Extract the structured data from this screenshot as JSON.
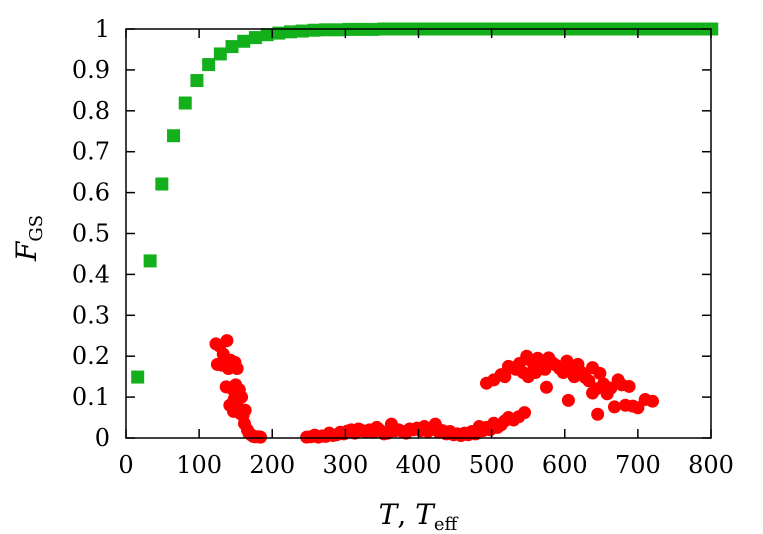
{
  "chart_data": {
    "type": "scatter",
    "title": "",
    "xlabel": "T, T_eff",
    "ylabel": "F_GS",
    "xlim": [
      0,
      800
    ],
    "ylim": [
      0,
      1
    ],
    "grid": false,
    "legend": "none",
    "x_ticks": [
      "0",
      "100",
      "200",
      "300",
      "400",
      "500",
      "600",
      "700",
      "800"
    ],
    "y_ticks": [
      "0",
      "0.1",
      "0.2",
      "0.3",
      "0.4",
      "0.5",
      "0.6",
      "0.7",
      "0.8",
      "0.9",
      "1"
    ],
    "axis_label_text": {
      "x_main": "T",
      "x_sep": ", ",
      "x_main2": "T",
      "x_sub2": "eff",
      "y_main": "F",
      "y_sub": "GS"
    },
    "series": [
      {
        "marker": "square",
        "color": "#13b01b",
        "points": [
          [
            16,
            0.149
          ],
          [
            33,
            0.433
          ],
          [
            49,
            0.621
          ],
          [
            65,
            0.739
          ],
          [
            81,
            0.819
          ],
          [
            97,
            0.874
          ],
          [
            113,
            0.913
          ],
          [
            129,
            0.939
          ],
          [
            145,
            0.957
          ],
          [
            161,
            0.97
          ],
          [
            177,
            0.979
          ],
          [
            193,
            0.986
          ],
          [
            209,
            0.99
          ],
          [
            225,
            0.993
          ],
          [
            241,
            0.995
          ],
          [
            257,
            0.997
          ],
          [
            273,
            0.998
          ],
          [
            289,
            0.998
          ],
          [
            305,
            0.999
          ],
          [
            321,
            0.999
          ],
          [
            337,
            0.999
          ],
          [
            353,
            1.0
          ],
          [
            369,
            1.0
          ],
          [
            385,
            1.0
          ],
          [
            401,
            1.0
          ],
          [
            417,
            1.0
          ],
          [
            433,
            1.0
          ],
          [
            449,
            1.0
          ],
          [
            465,
            1.0
          ],
          [
            481,
            1.0
          ],
          [
            497,
            1.0
          ],
          [
            513,
            1.0
          ],
          [
            529,
            1.0
          ],
          [
            545,
            1.0
          ],
          [
            561,
            1.0
          ],
          [
            577,
            1.0
          ],
          [
            593,
            1.0
          ],
          [
            609,
            1.0
          ],
          [
            625,
            1.0
          ],
          [
            641,
            1.0
          ],
          [
            657,
            1.0
          ],
          [
            673,
            1.0
          ],
          [
            689,
            1.0
          ],
          [
            705,
            1.0
          ],
          [
            721,
            1.0
          ],
          [
            737,
            1.0
          ],
          [
            753,
            1.0
          ],
          [
            769,
            1.0
          ],
          [
            785,
            1.0
          ],
          [
            801,
            1.0
          ]
        ]
      },
      {
        "marker": "circle",
        "color": "#ff0000",
        "points": [
          [
            123,
            0.23
          ],
          [
            128,
            0.225
          ],
          [
            133,
            0.205
          ],
          [
            138,
            0.238
          ],
          [
            125,
            0.18
          ],
          [
            131,
            0.178
          ],
          [
            140,
            0.17
          ],
          [
            143,
            0.19
          ],
          [
            149,
            0.185
          ],
          [
            152,
            0.17
          ],
          [
            137,
            0.125
          ],
          [
            145,
            0.12
          ],
          [
            150,
            0.13
          ],
          [
            155,
            0.118
          ],
          [
            142,
            0.08
          ],
          [
            148,
            0.095
          ],
          [
            153,
            0.075
          ],
          [
            158,
            0.1
          ],
          [
            147,
            0.065
          ],
          [
            156,
            0.06
          ],
          [
            160,
            0.055
          ],
          [
            163,
            0.068
          ],
          [
            162,
            0.035
          ],
          [
            166,
            0.02
          ],
          [
            168,
            0.012
          ],
          [
            171,
            0.008
          ],
          [
            174,
            0.004
          ],
          [
            177,
            0.003
          ],
          [
            181,
            0.003
          ],
          [
            184,
            0.002
          ],
          [
            247,
            0.002
          ],
          [
            253,
            0.003
          ],
          [
            258,
            0.007
          ],
          [
            263,
            0.002
          ],
          [
            268,
            0.005
          ],
          [
            273,
            0.004
          ],
          [
            278,
            0.012
          ],
          [
            283,
            0.006
          ],
          [
            288,
            0.008
          ],
          [
            293,
            0.014
          ],
          [
            298,
            0.01
          ],
          [
            303,
            0.017
          ],
          [
            308,
            0.02
          ],
          [
            313,
            0.012
          ],
          [
            318,
            0.022
          ],
          [
            323,
            0.018
          ],
          [
            328,
            0.016
          ],
          [
            333,
            0.02
          ],
          [
            338,
            0.014
          ],
          [
            343,
            0.026
          ],
          [
            348,
            0.018
          ],
          [
            353,
            0.01
          ],
          [
            358,
            0.012
          ],
          [
            363,
            0.034
          ],
          [
            368,
            0.018
          ],
          [
            373,
            0.02
          ],
          [
            378,
            0.016
          ],
          [
            383,
            0.012
          ],
          [
            388,
            0.022
          ],
          [
            393,
            0.02
          ],
          [
            398,
            0.024
          ],
          [
            403,
            0.018
          ],
          [
            408,
            0.028
          ],
          [
            413,
            0.016
          ],
          [
            418,
            0.022
          ],
          [
            423,
            0.034
          ],
          [
            428,
            0.014
          ],
          [
            433,
            0.018
          ],
          [
            438,
            0.01
          ],
          [
            443,
            0.016
          ],
          [
            448,
            0.008
          ],
          [
            453,
            0.01
          ],
          [
            458,
            0.006
          ],
          [
            463,
            0.012
          ],
          [
            468,
            0.008
          ],
          [
            473,
            0.016
          ],
          [
            478,
            0.01
          ],
          [
            483,
            0.028
          ],
          [
            488,
            0.018
          ],
          [
            493,
            0.026
          ],
          [
            498,
            0.02
          ],
          [
            503,
            0.036
          ],
          [
            508,
            0.026
          ],
          [
            513,
            0.032
          ],
          [
            518,
            0.042
          ],
          [
            523,
            0.05
          ],
          [
            530,
            0.044
          ],
          [
            537,
            0.052
          ],
          [
            545,
            0.062
          ],
          [
            493,
            0.134
          ],
          [
            503,
            0.142
          ],
          [
            513,
            0.155
          ],
          [
            518,
            0.15
          ],
          [
            523,
            0.175
          ],
          [
            528,
            0.172
          ],
          [
            533,
            0.168
          ],
          [
            538,
            0.182
          ],
          [
            543,
            0.16
          ],
          [
            548,
            0.2
          ],
          [
            553,
            0.19
          ],
          [
            558,
            0.175
          ],
          [
            563,
            0.195
          ],
          [
            568,
            0.18
          ],
          [
            573,
            0.168
          ],
          [
            578,
            0.196
          ],
          [
            583,
            0.184
          ],
          [
            588,
            0.178
          ],
          [
            593,
            0.17
          ],
          [
            598,
            0.16
          ],
          [
            603,
            0.188
          ],
          [
            608,
            0.172
          ],
          [
            613,
            0.15
          ],
          [
            618,
            0.18
          ],
          [
            623,
            0.16
          ],
          [
            628,
            0.148
          ],
          [
            633,
            0.14
          ],
          [
            638,
            0.172
          ],
          [
            643,
            0.12
          ],
          [
            648,
            0.158
          ],
          [
            653,
            0.132
          ],
          [
            658,
            0.108
          ],
          [
            663,
            0.122
          ],
          [
            668,
            0.076
          ],
          [
            673,
            0.142
          ],
          [
            678,
            0.13
          ],
          [
            683,
            0.08
          ],
          [
            688,
            0.126
          ],
          [
            693,
            0.078
          ],
          [
            700,
            0.074
          ],
          [
            710,
            0.094
          ],
          [
            720,
            0.09
          ],
          [
            605,
            0.092
          ],
          [
            638,
            0.11
          ],
          [
            645,
            0.058
          ],
          [
            575,
            0.124
          ],
          [
            550,
            0.15
          ],
          [
            560,
            0.16
          ]
        ]
      }
    ]
  }
}
